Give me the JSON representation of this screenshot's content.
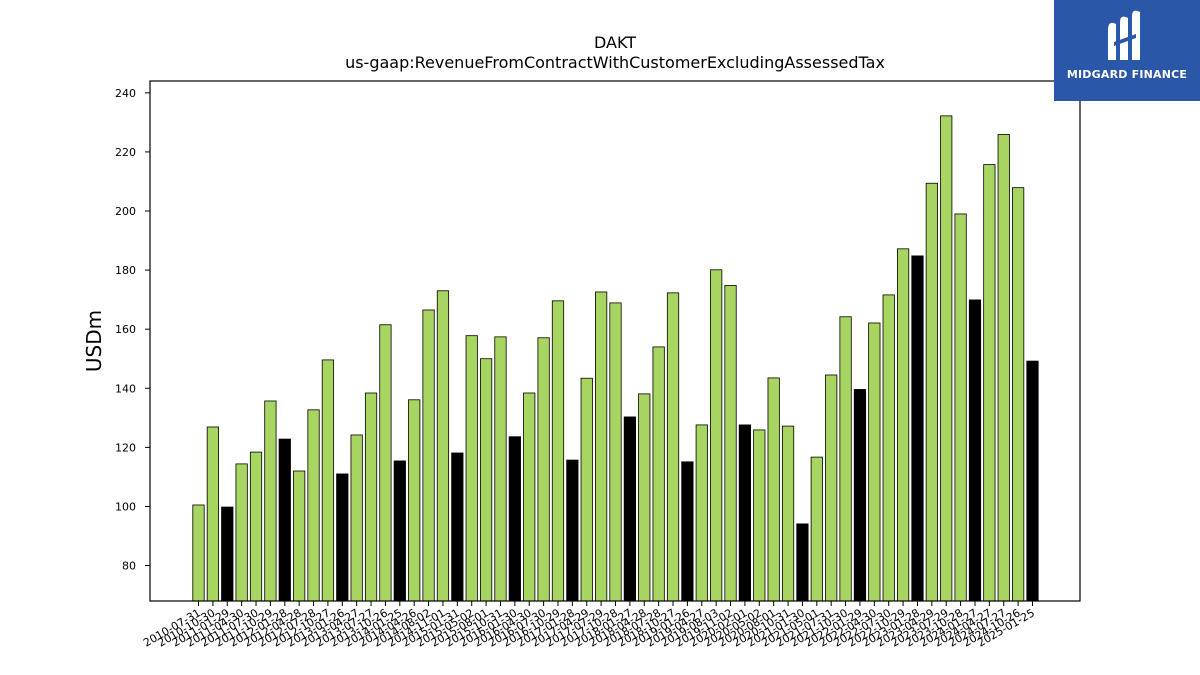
{
  "chart_data": {
    "type": "bar",
    "title": "DAKT",
    "subtitle": "us-gaap:RevenueFromContractWithCustomerExcludingAssessedTax",
    "xlabel": "",
    "ylabel": "USDm",
    "ylim": [
      68,
      244
    ],
    "yticks": [
      80,
      100,
      120,
      140,
      160,
      180,
      200,
      220,
      240
    ],
    "grid": false,
    "colors": {
      "quarter": "#a8d562",
      "annual": "#000000",
      "edge": "#000000"
    },
    "categories": [
      "2010-07-31",
      "2010-10-30",
      "2011-01-29",
      "2011-04-30",
      "2011-07-30",
      "2011-10-29",
      "2012-01-28",
      "2012-04-28",
      "2012-07-28",
      "2012-10-27",
      "2013-01-26",
      "2013-04-27",
      "2013-07-27",
      "2013-10-26",
      "2014-01-25",
      "2014-04-26",
      "2014-08-02",
      "2014-11-01",
      "2015-01-31",
      "2015-05-02",
      "2015-08-01",
      "2015-10-31",
      "2016-01-30",
      "2016-04-30",
      "2016-07-30",
      "2016-10-29",
      "2017-01-28",
      "2017-04-29",
      "2017-07-29",
      "2017-10-28",
      "2018-01-27",
      "2018-04-28",
      "2018-07-28",
      "2018-10-27",
      "2019-01-26",
      "2019-04-27",
      "2019-08-03",
      "2019-11-02",
      "2020-02-01",
      "2020-05-02",
      "2020-08-01",
      "2020-10-31",
      "2021-01-30",
      "2021-05-01",
      "2021-07-31",
      "2021-10-30",
      "2022-01-29",
      "2022-04-30",
      "2022-07-30",
      "2022-10-29",
      "2023-01-28",
      "2023-04-29",
      "2023-07-29",
      "2023-10-28",
      "2024-01-27",
      "2024-04-27",
      "2024-07-27",
      "2024-10-26",
      "2025-01-25"
    ],
    "tick_labels": [
      "2010-07-31",
      "2010-10-30",
      "2011-01-29",
      "2011-04-30",
      "2011-07-30",
      "2011-10-29",
      "2012-01-28",
      "2012-04-28",
      "2012-07-28",
      "2012-10-27",
      "2013-01-26",
      "2013-04-27",
      "2013-07-27",
      "2013-10-26",
      "2014-01-25",
      "2014-04-26",
      "2014-08-02",
      "2014-11-01",
      "2015-01-31",
      "2015-05-02",
      "2015-08-01",
      "2015-10-31",
      "2016-01-30",
      "2016-04-30",
      "2016-07-30",
      "2016-10-29",
      "2017-01-28",
      "2017-04-29",
      "2017-07-29",
      "2017-10-28",
      "2018-01-27",
      "2018-04-28",
      "2018-07-28",
      "2018-10-27",
      "2019-01-26",
      "2019-04-27",
      "2019-08-03",
      "2019-11-02",
      "2020-02-01",
      "2020-05-02",
      "2020-08-01",
      "2020-10-31",
      "2021-01-30",
      "2021-05-01",
      "2021-07-31",
      "2021-10-30",
      "2022-01-29",
      "2022-04-30",
      "2022-07-30",
      "2022-10-29",
      "2023-01-28",
      "2023-04-29",
      "2023-07-29",
      "2023-10-28",
      "2024-01-27",
      "2024-04-27",
      "2024-07-27",
      "2024-10-26",
      "2025-01-25"
    ],
    "values": [
      100.5,
      126.9,
      99.8,
      114.4,
      118.4,
      135.7,
      122.8,
      112.0,
      132.7,
      149.6,
      111.0,
      124.2,
      138.4,
      161.5,
      115.4,
      136.1,
      166.5,
      173.0,
      118.1,
      157.8,
      150.0,
      157.4,
      123.6,
      138.4,
      157.1,
      169.6,
      115.7,
      143.4,
      172.6,
      168.9,
      130.3,
      138.1,
      154.0,
      172.3,
      115.1,
      127.6,
      180.1,
      174.8,
      127.6,
      125.9,
      143.5,
      127.2,
      94.1,
      116.7,
      144.5,
      164.2,
      139.6,
      162.1,
      171.6,
      187.2,
      184.8,
      209.4,
      232.2,
      199.0,
      169.9,
      215.7,
      225.9,
      207.9,
      149.2
    ],
    "highlight": [
      false,
      false,
      true,
      false,
      false,
      false,
      true,
      false,
      false,
      false,
      true,
      false,
      false,
      false,
      true,
      false,
      false,
      false,
      true,
      false,
      false,
      false,
      true,
      false,
      false,
      false,
      true,
      false,
      false,
      false,
      true,
      false,
      false,
      false,
      true,
      false,
      false,
      false,
      true,
      false,
      false,
      false,
      true,
      false,
      false,
      false,
      true,
      false,
      false,
      false,
      true,
      false,
      false,
      false,
      true,
      false,
      false,
      false,
      true
    ]
  },
  "logo": {
    "name": "MIDGARD FINANCE",
    "icon": "midgard-m-icon"
  }
}
